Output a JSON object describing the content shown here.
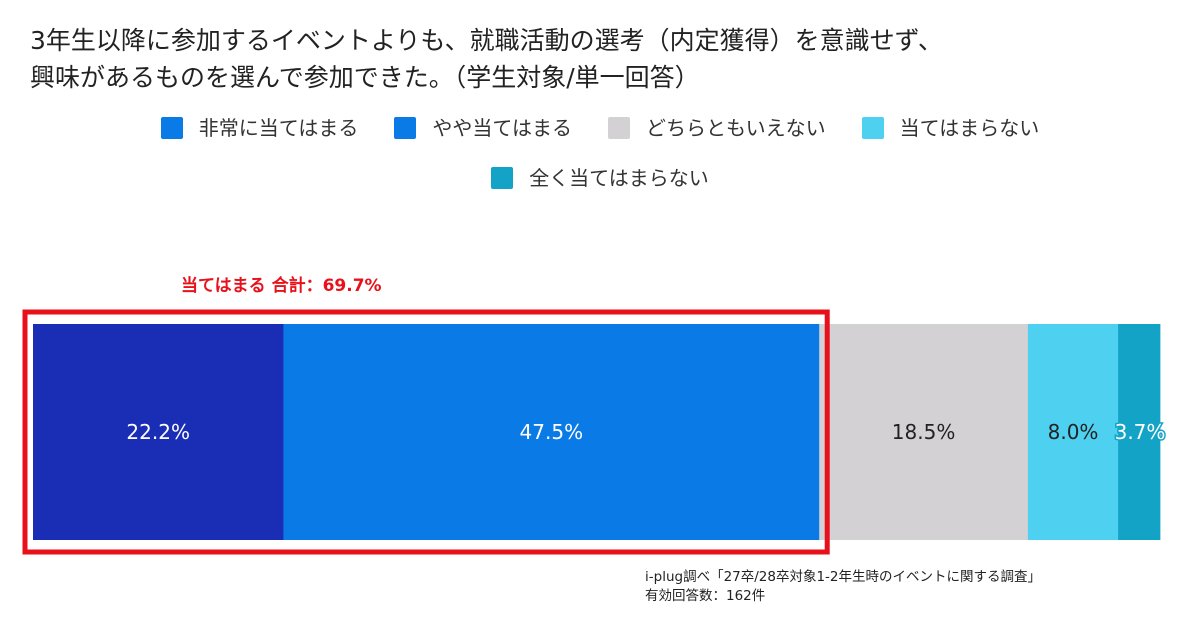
{
  "title_lines": [
    "3年生以降に参加するイベントよりも、就職活動の選考（内定獲得）を意識せず、",
    "興味があるものを選んで参加できた。（学生対象/単一回答）"
  ],
  "chart_data": {
    "type": "bar",
    "orientation": "horizontal-stacked-100",
    "title": "3年生以降に参加するイベントよりも、就職活動の選考（内定獲得）を意識せず、興味があるものを選んで参加できた。（学生対象/単一回答）",
    "series": [
      {
        "name": "非常に当てはまる",
        "values": [
          22.2
        ],
        "label": "22.2%",
        "color": "#1a2db5"
      },
      {
        "name": "やや当てはまる",
        "values": [
          47.5
        ],
        "label": "47.5%",
        "color": "#0a7ae6"
      },
      {
        "name": "どちらともいえない",
        "values": [
          18.5
        ],
        "label": "18.5%",
        "color": "#d3d1d4"
      },
      {
        "name": "当てはまらない",
        "values": [
          8.0
        ],
        "label": "8.0%",
        "color": "#4ed0f0"
      },
      {
        "name": "全く当てはまらない",
        "values": [
          3.7
        ],
        "label": "3.7%",
        "color": "#13a3c6"
      }
    ],
    "legend_placement": "top-center",
    "legend_colors": [
      "#0a7ae6",
      "#0a7ae6",
      "#d3d1d4",
      "#4ed0f0",
      "#13a3c6"
    ],
    "annotation": {
      "label": "当てはまる 合計：69.7%",
      "covers_series": [
        0,
        1
      ],
      "color": "#e8101a"
    }
  },
  "source_note": {
    "line1": "i-plug調べ「27卒/28卒対象1-2年生時のイベントに関する調査」",
    "line2": "有効回答数：162件"
  }
}
